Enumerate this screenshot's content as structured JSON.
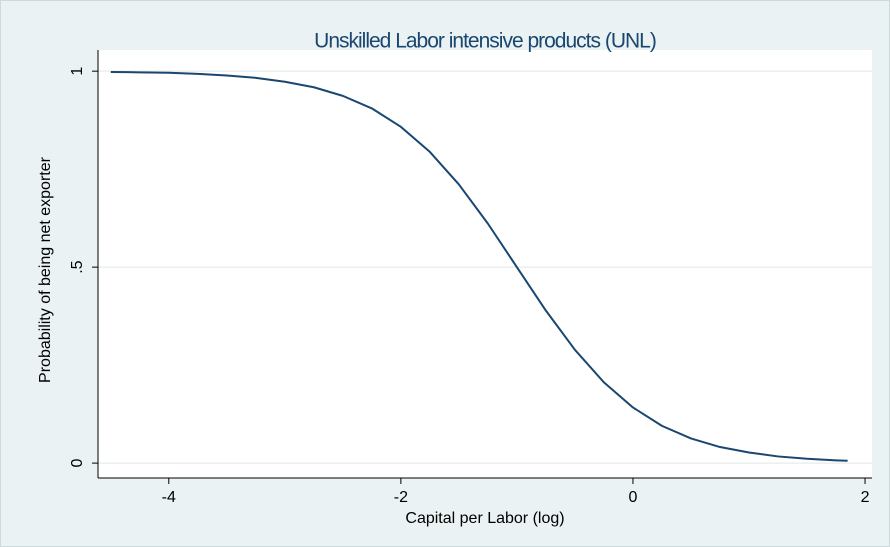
{
  "chart_data": {
    "type": "line",
    "title": "Unskilled Labor intensive products (UNL)",
    "xlabel": "Capital per Labor (log)",
    "ylabel": "Probability of being net exporter",
    "x": [
      -4.5,
      -4.25,
      -4,
      -3.75,
      -3.5,
      -3.25,
      -3,
      -2.75,
      -2.5,
      -2.25,
      -2,
      -1.75,
      -1.5,
      -1.25,
      -1,
      -0.75,
      -0.5,
      -0.25,
      0,
      0.25,
      0.5,
      0.75,
      1,
      1.25,
      1.5,
      1.75,
      1.85
    ],
    "series": [
      {
        "color": "#1a476f",
        "values": [
          0.998,
          0.997,
          0.996,
          0.993,
          0.989,
          0.983,
          0.973,
          0.959,
          0.937,
          0.905,
          0.858,
          0.794,
          0.711,
          0.611,
          0.5,
          0.389,
          0.289,
          0.206,
          0.142,
          0.095,
          0.063,
          0.041,
          0.027,
          0.017,
          0.011,
          0.007,
          0.006
        ]
      }
    ],
    "xlim": [
      -4.61,
      2.06
    ],
    "xticks": [
      -4,
      -2,
      0,
      2
    ],
    "ylim": [
      -0.038,
      1.054
    ],
    "yticks": [
      0,
      {
        "value": 0.5,
        "label": ".5"
      },
      1
    ],
    "grid": true
  }
}
